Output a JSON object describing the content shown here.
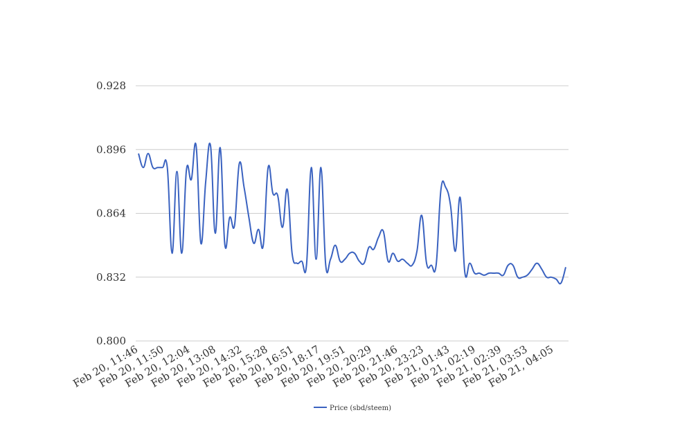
{
  "chart_data": {
    "type": "line",
    "title": "",
    "xlabel": "",
    "ylabel": "",
    "ylim": [
      0.8,
      0.928
    ],
    "yticks": [
      "0.928",
      "0.896",
      "0.864",
      "0.832",
      "0.800"
    ],
    "x_tick_labels": [
      "Feb 20, 11:46",
      "Feb 20, 11:50",
      "Feb 20, 12:04",
      "Feb 20, 13:08",
      "Feb 20, 14:32",
      "Feb 20, 15:28",
      "Feb 20, 16:51",
      "Feb 20, 18:17",
      "Feb 20, 19:51",
      "Feb 20, 20:29",
      "Feb 20, 21:46",
      "Feb 20, 23:23",
      "Feb 21, 01:43",
      "Feb 21, 02:19",
      "Feb 21, 02:39",
      "Feb 21, 03:53",
      "Feb 21, 04:05"
    ],
    "grid": true,
    "legend_position": "bottom",
    "series": [
      {
        "name": "Price (sbd/steem)",
        "color": "#3a62c0",
        "values": [
          0.894,
          0.887,
          0.894,
          0.887,
          0.887,
          0.887,
          0.887,
          0.844,
          0.885,
          0.844,
          0.886,
          0.881,
          0.898,
          0.849,
          0.88,
          0.898,
          0.854,
          0.897,
          0.848,
          0.862,
          0.858,
          0.889,
          0.877,
          0.862,
          0.849,
          0.856,
          0.848,
          0.887,
          0.874,
          0.873,
          0.857,
          0.876,
          0.844,
          0.839,
          0.84,
          0.838,
          0.887,
          0.841,
          0.887,
          0.838,
          0.841,
          0.848,
          0.84,
          0.841,
          0.844,
          0.844,
          0.84,
          0.839,
          0.847,
          0.846,
          0.852,
          0.855,
          0.84,
          0.844,
          0.84,
          0.841,
          0.839,
          0.838,
          0.845,
          0.863,
          0.839,
          0.838,
          0.838,
          0.876,
          0.877,
          0.868,
          0.845,
          0.872,
          0.834,
          0.839,
          0.834,
          0.834,
          0.833,
          0.834,
          0.834,
          0.834,
          0.833,
          0.838,
          0.838,
          0.832,
          0.832,
          0.833,
          0.836,
          0.839,
          0.836,
          0.832,
          0.832,
          0.831,
          0.829,
          0.837
        ]
      }
    ]
  }
}
